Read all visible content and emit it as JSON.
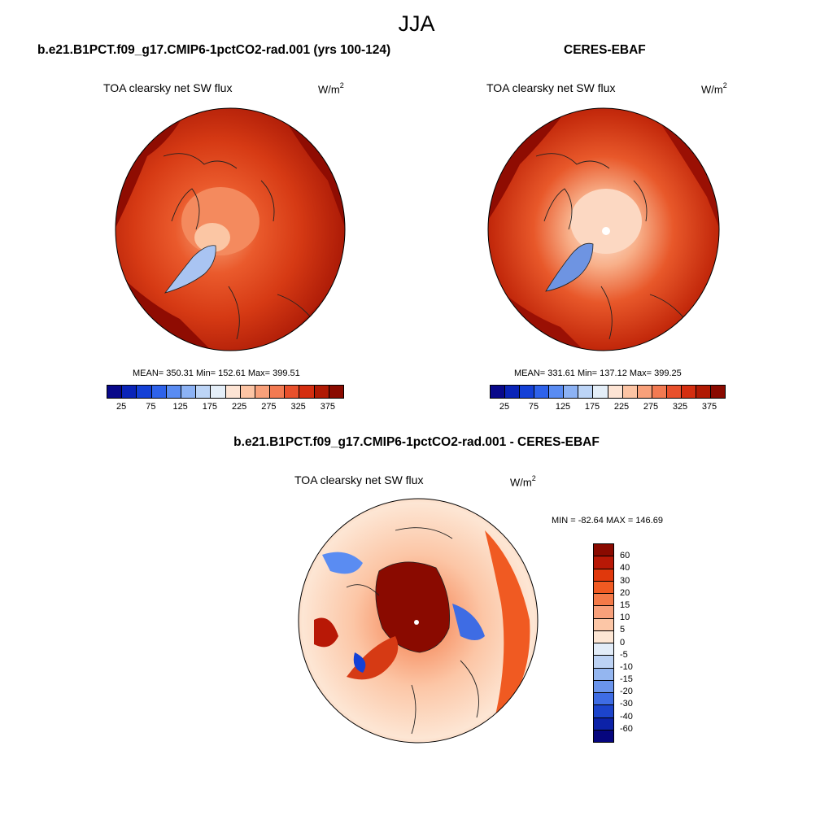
{
  "title": "JJA",
  "panels": [
    {
      "id": "model",
      "title": "b.e21.B1PCT.f09_g17.CMIP6-1pctCO2-rad.001 (yrs 100-124)",
      "variable": "TOA clearsky net SW flux",
      "unit_base": "W/m",
      "unit_exp": "2",
      "stats": "MEAN= 350.31  Min= 152.61  Max= 399.51"
    },
    {
      "id": "obs",
      "title": "CERES-EBAF",
      "variable": "TOA clearsky net SW flux",
      "unit_base": "W/m",
      "unit_exp": "2",
      "stats": "MEAN= 331.61  Min= 137.12  Max= 399.25"
    }
  ],
  "difference": {
    "title": "b.e21.B1PCT.f09_g17.CMIP6-1pctCO2-rad.001 - CERES-EBAF",
    "variable": "TOA clearsky net SW flux",
    "unit_base": "W/m",
    "unit_exp": "2",
    "stats": "MIN = -82.64 MAX = 146.69"
  },
  "colorbar_abs": {
    "ticks": [
      "25",
      "75",
      "125",
      "175",
      "225",
      "275",
      "325",
      "375"
    ],
    "colors": [
      "#08088a",
      "#0a24b8",
      "#1440d6",
      "#2e62ea",
      "#5a8cf2",
      "#8cb2f4",
      "#bcd4f6",
      "#e4eef8",
      "#fde4d4",
      "#fcc4a4",
      "#f8a07a",
      "#f27a52",
      "#e8502c",
      "#d42e10",
      "#b01a04",
      "#8a0a00"
    ]
  },
  "colorbar_diff": {
    "labels": [
      "60",
      "40",
      "30",
      "20",
      "15",
      "10",
      "5",
      "0",
      "-5",
      "-10",
      "-15",
      "-20",
      "-30",
      "-40",
      "-60"
    ],
    "colors": [
      "#8a0a00",
      "#b81806",
      "#e0380c",
      "#f05a22",
      "#f47a48",
      "#f8a07a",
      "#fcc6a6",
      "#fde6d4",
      "#e2ecf8",
      "#bcd2f4",
      "#94b6f0",
      "#6a94ec",
      "#3e6ce4",
      "#1c44cc",
      "#0c22a8",
      "#06067e"
    ]
  }
}
